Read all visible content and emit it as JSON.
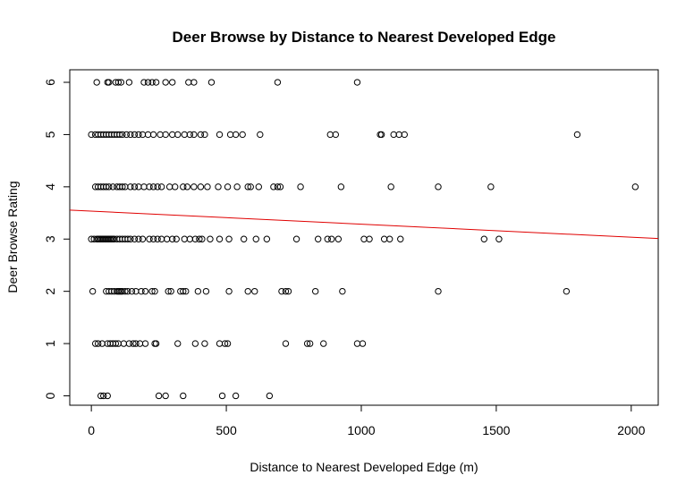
{
  "chart_data": {
    "type": "scatter",
    "title": "Deer Browse by Distance to Nearest Developed Edge",
    "xlabel": "Distance to Nearest Developed Edge (m)",
    "ylabel": "Deer Browse Rating",
    "xlim": [
      -80,
      2100
    ],
    "ylim": [
      -0.18,
      6.24
    ],
    "x_ticks": [
      0,
      500,
      1000,
      1500,
      2000
    ],
    "y_ticks": [
      0,
      1,
      2,
      3,
      4,
      5,
      6
    ],
    "grid": false,
    "legend": "none",
    "marker": "open-circle",
    "point_color": "#000000",
    "fit_line_color": "#e00000",
    "fit_line": {
      "intercept": 3.535,
      "slope": -0.00025
    },
    "points": [
      {
        "x": 35,
        "y": 0
      },
      {
        "x": 45,
        "y": 0
      },
      {
        "x": 60,
        "y": 0
      },
      {
        "x": 250,
        "y": 0
      },
      {
        "x": 275,
        "y": 0
      },
      {
        "x": 340,
        "y": 0
      },
      {
        "x": 485,
        "y": 0
      },
      {
        "x": 535,
        "y": 0
      },
      {
        "x": 660,
        "y": 0
      },
      {
        "x": 15,
        "y": 1
      },
      {
        "x": 25,
        "y": 1
      },
      {
        "x": 40,
        "y": 1
      },
      {
        "x": 60,
        "y": 1
      },
      {
        "x": 70,
        "y": 1
      },
      {
        "x": 80,
        "y": 1
      },
      {
        "x": 90,
        "y": 1
      },
      {
        "x": 100,
        "y": 1
      },
      {
        "x": 120,
        "y": 1
      },
      {
        "x": 140,
        "y": 1
      },
      {
        "x": 155,
        "y": 1
      },
      {
        "x": 165,
        "y": 1
      },
      {
        "x": 180,
        "y": 1
      },
      {
        "x": 200,
        "y": 1
      },
      {
        "x": 235,
        "y": 1
      },
      {
        "x": 240,
        "y": 1
      },
      {
        "x": 320,
        "y": 1
      },
      {
        "x": 385,
        "y": 1
      },
      {
        "x": 420,
        "y": 1
      },
      {
        "x": 475,
        "y": 1
      },
      {
        "x": 495,
        "y": 1
      },
      {
        "x": 505,
        "y": 1
      },
      {
        "x": 720,
        "y": 1
      },
      {
        "x": 800,
        "y": 1
      },
      {
        "x": 810,
        "y": 1
      },
      {
        "x": 860,
        "y": 1
      },
      {
        "x": 985,
        "y": 1
      },
      {
        "x": 1005,
        "y": 1
      },
      {
        "x": 5,
        "y": 2
      },
      {
        "x": 55,
        "y": 2
      },
      {
        "x": 65,
        "y": 2
      },
      {
        "x": 75,
        "y": 2
      },
      {
        "x": 85,
        "y": 2
      },
      {
        "x": 95,
        "y": 2
      },
      {
        "x": 100,
        "y": 2
      },
      {
        "x": 105,
        "y": 2
      },
      {
        "x": 110,
        "y": 2
      },
      {
        "x": 115,
        "y": 2
      },
      {
        "x": 125,
        "y": 2
      },
      {
        "x": 135,
        "y": 2
      },
      {
        "x": 150,
        "y": 2
      },
      {
        "x": 165,
        "y": 2
      },
      {
        "x": 185,
        "y": 2
      },
      {
        "x": 200,
        "y": 2
      },
      {
        "x": 225,
        "y": 2
      },
      {
        "x": 235,
        "y": 2
      },
      {
        "x": 285,
        "y": 2
      },
      {
        "x": 295,
        "y": 2
      },
      {
        "x": 330,
        "y": 2
      },
      {
        "x": 340,
        "y": 2
      },
      {
        "x": 350,
        "y": 2
      },
      {
        "x": 395,
        "y": 2
      },
      {
        "x": 425,
        "y": 2
      },
      {
        "x": 510,
        "y": 2
      },
      {
        "x": 580,
        "y": 2
      },
      {
        "x": 605,
        "y": 2
      },
      {
        "x": 705,
        "y": 2
      },
      {
        "x": 720,
        "y": 2
      },
      {
        "x": 730,
        "y": 2
      },
      {
        "x": 830,
        "y": 2
      },
      {
        "x": 930,
        "y": 2
      },
      {
        "x": 1285,
        "y": 2
      },
      {
        "x": 1760,
        "y": 2
      },
      {
        "x": 0,
        "y": 3
      },
      {
        "x": 10,
        "y": 3
      },
      {
        "x": 20,
        "y": 3
      },
      {
        "x": 25,
        "y": 3
      },
      {
        "x": 30,
        "y": 3
      },
      {
        "x": 35,
        "y": 3
      },
      {
        "x": 40,
        "y": 3
      },
      {
        "x": 45,
        "y": 3
      },
      {
        "x": 50,
        "y": 3
      },
      {
        "x": 55,
        "y": 3
      },
      {
        "x": 60,
        "y": 3
      },
      {
        "x": 65,
        "y": 3
      },
      {
        "x": 70,
        "y": 3
      },
      {
        "x": 75,
        "y": 3
      },
      {
        "x": 80,
        "y": 3
      },
      {
        "x": 85,
        "y": 3
      },
      {
        "x": 95,
        "y": 3
      },
      {
        "x": 105,
        "y": 3
      },
      {
        "x": 115,
        "y": 3
      },
      {
        "x": 125,
        "y": 3
      },
      {
        "x": 135,
        "y": 3
      },
      {
        "x": 145,
        "y": 3
      },
      {
        "x": 160,
        "y": 3
      },
      {
        "x": 175,
        "y": 3
      },
      {
        "x": 190,
        "y": 3
      },
      {
        "x": 215,
        "y": 3
      },
      {
        "x": 230,
        "y": 3
      },
      {
        "x": 245,
        "y": 3
      },
      {
        "x": 260,
        "y": 3
      },
      {
        "x": 280,
        "y": 3
      },
      {
        "x": 300,
        "y": 3
      },
      {
        "x": 315,
        "y": 3
      },
      {
        "x": 345,
        "y": 3
      },
      {
        "x": 365,
        "y": 3
      },
      {
        "x": 385,
        "y": 3
      },
      {
        "x": 400,
        "y": 3
      },
      {
        "x": 410,
        "y": 3
      },
      {
        "x": 440,
        "y": 3
      },
      {
        "x": 475,
        "y": 3
      },
      {
        "x": 510,
        "y": 3
      },
      {
        "x": 565,
        "y": 3
      },
      {
        "x": 610,
        "y": 3
      },
      {
        "x": 650,
        "y": 3
      },
      {
        "x": 760,
        "y": 3
      },
      {
        "x": 840,
        "y": 3
      },
      {
        "x": 875,
        "y": 3
      },
      {
        "x": 890,
        "y": 3
      },
      {
        "x": 915,
        "y": 3
      },
      {
        "x": 1010,
        "y": 3
      },
      {
        "x": 1030,
        "y": 3
      },
      {
        "x": 1085,
        "y": 3
      },
      {
        "x": 1105,
        "y": 3
      },
      {
        "x": 1145,
        "y": 3
      },
      {
        "x": 1455,
        "y": 3
      },
      {
        "x": 1510,
        "y": 3
      },
      {
        "x": 15,
        "y": 4
      },
      {
        "x": 25,
        "y": 4
      },
      {
        "x": 35,
        "y": 4
      },
      {
        "x": 45,
        "y": 4
      },
      {
        "x": 55,
        "y": 4
      },
      {
        "x": 65,
        "y": 4
      },
      {
        "x": 80,
        "y": 4
      },
      {
        "x": 95,
        "y": 4
      },
      {
        "x": 105,
        "y": 4
      },
      {
        "x": 115,
        "y": 4
      },
      {
        "x": 125,
        "y": 4
      },
      {
        "x": 145,
        "y": 4
      },
      {
        "x": 160,
        "y": 4
      },
      {
        "x": 175,
        "y": 4
      },
      {
        "x": 195,
        "y": 4
      },
      {
        "x": 215,
        "y": 4
      },
      {
        "x": 230,
        "y": 4
      },
      {
        "x": 245,
        "y": 4
      },
      {
        "x": 260,
        "y": 4
      },
      {
        "x": 290,
        "y": 4
      },
      {
        "x": 310,
        "y": 4
      },
      {
        "x": 340,
        "y": 4
      },
      {
        "x": 355,
        "y": 4
      },
      {
        "x": 380,
        "y": 4
      },
      {
        "x": 405,
        "y": 4
      },
      {
        "x": 430,
        "y": 4
      },
      {
        "x": 470,
        "y": 4
      },
      {
        "x": 505,
        "y": 4
      },
      {
        "x": 540,
        "y": 4
      },
      {
        "x": 580,
        "y": 4
      },
      {
        "x": 590,
        "y": 4
      },
      {
        "x": 620,
        "y": 4
      },
      {
        "x": 675,
        "y": 4
      },
      {
        "x": 690,
        "y": 4
      },
      {
        "x": 700,
        "y": 4
      },
      {
        "x": 775,
        "y": 4
      },
      {
        "x": 925,
        "y": 4
      },
      {
        "x": 1110,
        "y": 4
      },
      {
        "x": 1285,
        "y": 4
      },
      {
        "x": 1480,
        "y": 4
      },
      {
        "x": 2015,
        "y": 4
      },
      {
        "x": 0,
        "y": 5
      },
      {
        "x": 15,
        "y": 5
      },
      {
        "x": 25,
        "y": 5
      },
      {
        "x": 35,
        "y": 5
      },
      {
        "x": 45,
        "y": 5
      },
      {
        "x": 55,
        "y": 5
      },
      {
        "x": 65,
        "y": 5
      },
      {
        "x": 75,
        "y": 5
      },
      {
        "x": 85,
        "y": 5
      },
      {
        "x": 95,
        "y": 5
      },
      {
        "x": 105,
        "y": 5
      },
      {
        "x": 115,
        "y": 5
      },
      {
        "x": 130,
        "y": 5
      },
      {
        "x": 145,
        "y": 5
      },
      {
        "x": 160,
        "y": 5
      },
      {
        "x": 175,
        "y": 5
      },
      {
        "x": 190,
        "y": 5
      },
      {
        "x": 210,
        "y": 5
      },
      {
        "x": 230,
        "y": 5
      },
      {
        "x": 255,
        "y": 5
      },
      {
        "x": 275,
        "y": 5
      },
      {
        "x": 300,
        "y": 5
      },
      {
        "x": 320,
        "y": 5
      },
      {
        "x": 345,
        "y": 5
      },
      {
        "x": 365,
        "y": 5
      },
      {
        "x": 380,
        "y": 5
      },
      {
        "x": 405,
        "y": 5
      },
      {
        "x": 420,
        "y": 5
      },
      {
        "x": 475,
        "y": 5
      },
      {
        "x": 515,
        "y": 5
      },
      {
        "x": 535,
        "y": 5
      },
      {
        "x": 560,
        "y": 5
      },
      {
        "x": 625,
        "y": 5
      },
      {
        "x": 885,
        "y": 5
      },
      {
        "x": 905,
        "y": 5
      },
      {
        "x": 1070,
        "y": 5
      },
      {
        "x": 1075,
        "y": 5
      },
      {
        "x": 1120,
        "y": 5
      },
      {
        "x": 1140,
        "y": 5
      },
      {
        "x": 1160,
        "y": 5
      },
      {
        "x": 1800,
        "y": 5
      },
      {
        "x": 20,
        "y": 6
      },
      {
        "x": 60,
        "y": 6
      },
      {
        "x": 65,
        "y": 6
      },
      {
        "x": 90,
        "y": 6
      },
      {
        "x": 100,
        "y": 6
      },
      {
        "x": 110,
        "y": 6
      },
      {
        "x": 140,
        "y": 6
      },
      {
        "x": 195,
        "y": 6
      },
      {
        "x": 210,
        "y": 6
      },
      {
        "x": 225,
        "y": 6
      },
      {
        "x": 240,
        "y": 6
      },
      {
        "x": 275,
        "y": 6
      },
      {
        "x": 300,
        "y": 6
      },
      {
        "x": 360,
        "y": 6
      },
      {
        "x": 380,
        "y": 6
      },
      {
        "x": 445,
        "y": 6
      },
      {
        "x": 690,
        "y": 6
      },
      {
        "x": 985,
        "y": 6
      }
    ]
  }
}
